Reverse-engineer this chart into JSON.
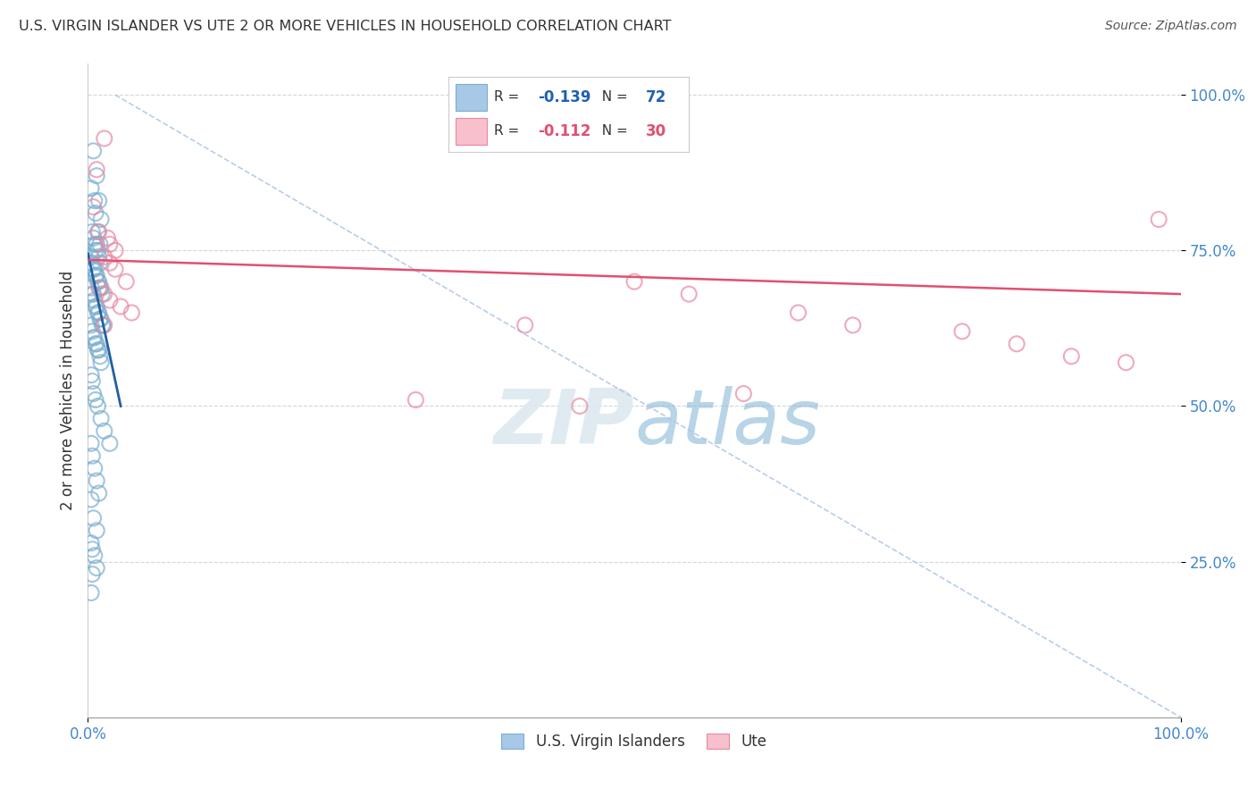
{
  "title": "U.S. VIRGIN ISLANDER VS UTE 2 OR MORE VEHICLES IN HOUSEHOLD CORRELATION CHART",
  "source": "Source: ZipAtlas.com",
  "ylabel": "2 or more Vehicles in Household",
  "legend_label1": "U.S. Virgin Islanders",
  "legend_label2": "Ute",
  "R1": -0.139,
  "N1": 72,
  "R2": -0.112,
  "N2": 30,
  "blue_color": "#a8c8e8",
  "pink_color": "#f0a0b0",
  "blue_edge_color": "#7aaed0",
  "pink_edge_color": "#e888a0",
  "blue_line_color": "#2060a0",
  "pink_line_color": "#e05070",
  "ref_line_color": "#b0c8e8",
  "blue_scatter": [
    [
      0.5,
      91
    ],
    [
      0.8,
      87
    ],
    [
      1.0,
      83
    ],
    [
      1.2,
      80
    ],
    [
      0.3,
      85
    ],
    [
      0.6,
      83
    ],
    [
      0.7,
      81
    ],
    [
      0.9,
      78
    ],
    [
      1.1,
      76
    ],
    [
      0.4,
      78
    ],
    [
      0.5,
      77
    ],
    [
      0.6,
      76
    ],
    [
      0.7,
      75
    ],
    [
      0.8,
      76
    ],
    [
      0.9,
      75
    ],
    [
      1.0,
      74
    ],
    [
      1.1,
      73
    ],
    [
      0.3,
      74
    ],
    [
      0.4,
      73
    ],
    [
      0.5,
      72
    ],
    [
      0.6,
      72
    ],
    [
      0.7,
      71
    ],
    [
      0.8,
      71
    ],
    [
      0.9,
      70
    ],
    [
      1.0,
      70
    ],
    [
      1.1,
      69
    ],
    [
      1.2,
      69
    ],
    [
      1.3,
      68
    ],
    [
      0.3,
      69
    ],
    [
      0.4,
      68
    ],
    [
      0.5,
      68
    ],
    [
      0.6,
      67
    ],
    [
      0.7,
      66
    ],
    [
      0.8,
      66
    ],
    [
      0.9,
      65
    ],
    [
      1.0,
      65
    ],
    [
      1.1,
      64
    ],
    [
      1.2,
      64
    ],
    [
      1.3,
      63
    ],
    [
      1.4,
      63
    ],
    [
      0.3,
      63
    ],
    [
      0.4,
      62
    ],
    [
      0.5,
      61
    ],
    [
      0.6,
      61
    ],
    [
      0.7,
      60
    ],
    [
      0.8,
      60
    ],
    [
      0.9,
      59
    ],
    [
      1.0,
      59
    ],
    [
      1.1,
      58
    ],
    [
      1.2,
      57
    ],
    [
      0.3,
      55
    ],
    [
      0.4,
      54
    ],
    [
      0.5,
      52
    ],
    [
      0.7,
      51
    ],
    [
      0.9,
      50
    ],
    [
      1.2,
      48
    ],
    [
      1.5,
      46
    ],
    [
      2.0,
      44
    ],
    [
      0.3,
      44
    ],
    [
      0.4,
      42
    ],
    [
      0.6,
      40
    ],
    [
      0.8,
      38
    ],
    [
      1.0,
      36
    ],
    [
      0.3,
      35
    ],
    [
      0.5,
      32
    ],
    [
      0.8,
      30
    ],
    [
      0.3,
      28
    ],
    [
      0.4,
      27
    ],
    [
      0.6,
      26
    ],
    [
      0.8,
      24
    ],
    [
      0.4,
      23
    ],
    [
      0.3,
      20
    ]
  ],
  "pink_scatter": [
    [
      1.5,
      93
    ],
    [
      0.8,
      88
    ],
    [
      0.5,
      82
    ],
    [
      1.0,
      78
    ],
    [
      1.8,
      77
    ],
    [
      2.0,
      76
    ],
    [
      2.5,
      75
    ],
    [
      1.5,
      74
    ],
    [
      2.0,
      73
    ],
    [
      2.5,
      72
    ],
    [
      3.5,
      70
    ],
    [
      1.0,
      69
    ],
    [
      1.5,
      68
    ],
    [
      2.0,
      67
    ],
    [
      3.0,
      66
    ],
    [
      4.0,
      65
    ],
    [
      1.5,
      63
    ],
    [
      30.0,
      51
    ],
    [
      50.0,
      70
    ],
    [
      55.0,
      68
    ],
    [
      65.0,
      65
    ],
    [
      70.0,
      63
    ],
    [
      80.0,
      62
    ],
    [
      85.0,
      60
    ],
    [
      90.0,
      58
    ],
    [
      95.0,
      57
    ],
    [
      98.0,
      80
    ],
    [
      40.0,
      63
    ],
    [
      45.0,
      50
    ],
    [
      60.0,
      52
    ]
  ],
  "xlim": [
    0,
    100
  ],
  "ylim": [
    0,
    105
  ],
  "yticks": [
    25,
    50,
    75,
    100
  ],
  "xticks": [
    0,
    100
  ],
  "bg_color": "#ffffff",
  "grid_color": "#cccccc",
  "blue_line_x": [
    0,
    3.0
  ],
  "blue_line_y": [
    74.5,
    50.0
  ],
  "pink_line_x": [
    0,
    100
  ],
  "pink_line_y": [
    73.5,
    68.0
  ],
  "ref_line_x": [
    2.5,
    100
  ],
  "ref_line_y": [
    100,
    0
  ]
}
